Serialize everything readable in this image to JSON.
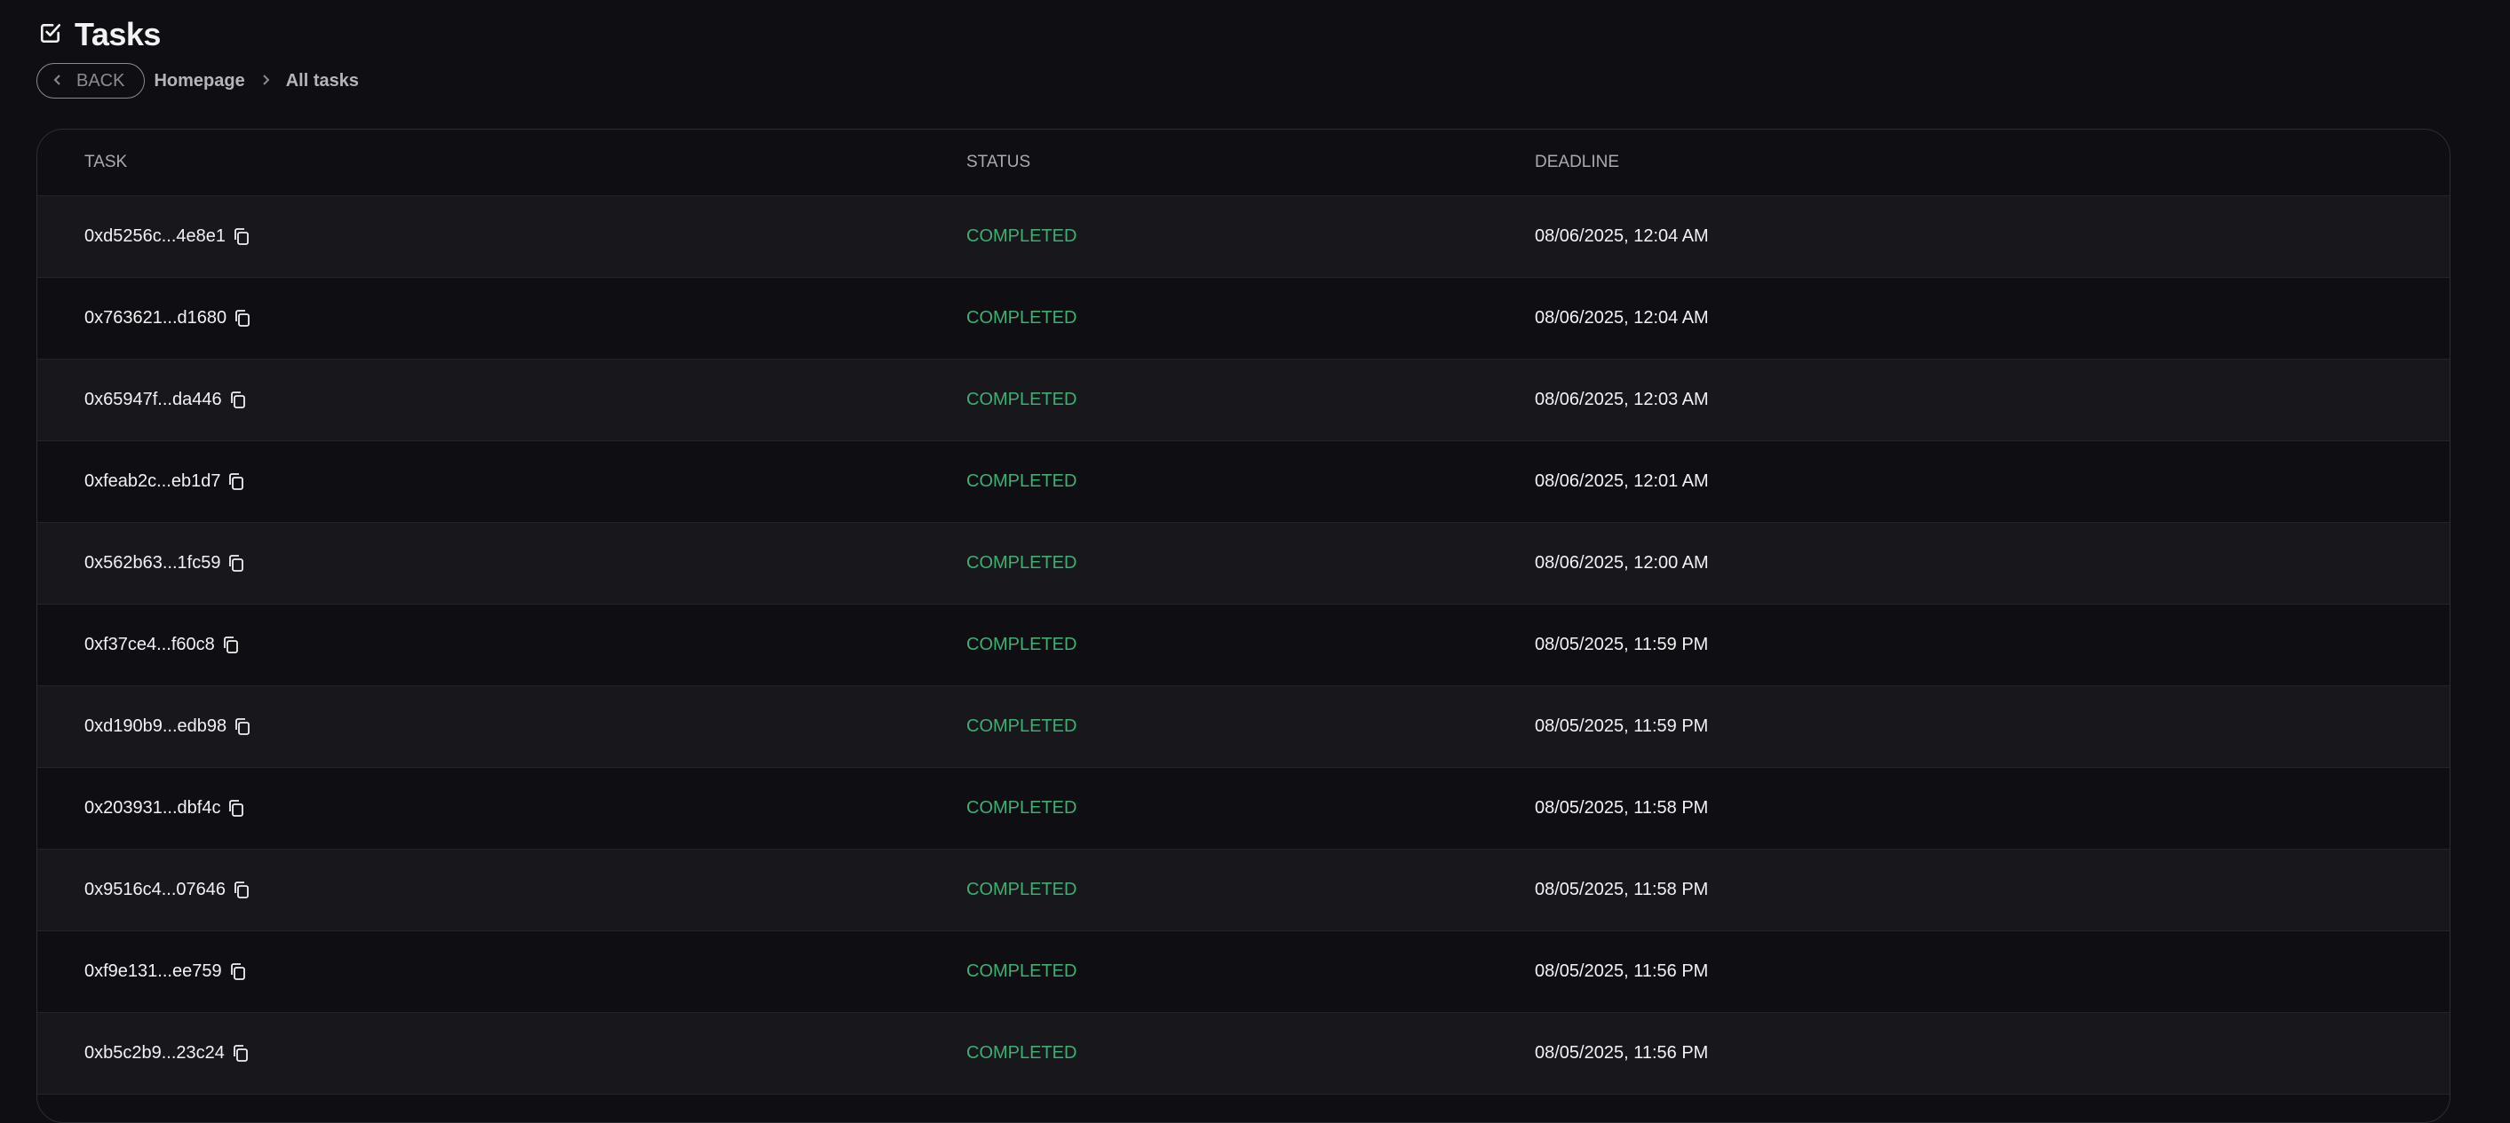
{
  "header": {
    "title": "Tasks",
    "icon": "checkbox-icon"
  },
  "breadcrumb": {
    "back_label": "BACK",
    "items": [
      "Homepage",
      "All tasks"
    ]
  },
  "colors": {
    "background": "#0f0f13",
    "status_completed": "#3fae72",
    "row_alt": "#17171c"
  },
  "table": {
    "columns": [
      "TASK",
      "STATUS",
      "DEADLINE"
    ],
    "rows": [
      {
        "task": "0xd5256c...4e8e1",
        "status": "COMPLETED",
        "deadline": "08/06/2025, 12:04 AM"
      },
      {
        "task": "0x763621...d1680",
        "status": "COMPLETED",
        "deadline": "08/06/2025, 12:04 AM"
      },
      {
        "task": "0x65947f...da446",
        "status": "COMPLETED",
        "deadline": "08/06/2025, 12:03 AM"
      },
      {
        "task": "0xfeab2c...eb1d7",
        "status": "COMPLETED",
        "deadline": "08/06/2025, 12:01 AM"
      },
      {
        "task": "0x562b63...1fc59",
        "status": "COMPLETED",
        "deadline": "08/06/2025, 12:00 AM"
      },
      {
        "task": "0xf37ce4...f60c8",
        "status": "COMPLETED",
        "deadline": "08/05/2025, 11:59 PM"
      },
      {
        "task": "0xd190b9...edb98",
        "status": "COMPLETED",
        "deadline": "08/05/2025, 11:59 PM"
      },
      {
        "task": "0x203931...dbf4c",
        "status": "COMPLETED",
        "deadline": "08/05/2025, 11:58 PM"
      },
      {
        "task": "0x9516c4...07646",
        "status": "COMPLETED",
        "deadline": "08/05/2025, 11:58 PM"
      },
      {
        "task": "0xf9e131...ee759",
        "status": "COMPLETED",
        "deadline": "08/05/2025, 11:56 PM"
      },
      {
        "task": "0xb5c2b9...23c24",
        "status": "COMPLETED",
        "deadline": "08/05/2025, 11:56 PM"
      }
    ]
  }
}
